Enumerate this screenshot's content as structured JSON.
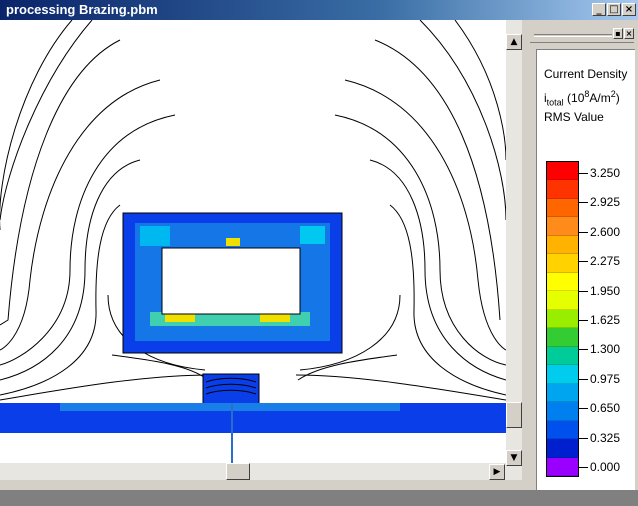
{
  "window": {
    "title": "processing Brazing.pbm",
    "controls": [
      "_",
      "□",
      "×"
    ]
  },
  "legend": {
    "title_line1": "Current Density",
    "title_line2_prefix": "i",
    "title_line2_sub": "total",
    "title_line2_mid": " (10",
    "title_line2_sup": "8",
    "title_line2_unit": "A/m",
    "title_line2_sup2": "2",
    "title_line2_end": ")",
    "title_line3": "RMS Value",
    "panel_controls": [
      "▪",
      "×"
    ],
    "scale_labels": [
      "3.250",
      "2.925",
      "2.600",
      "2.275",
      "1.950",
      "1.625",
      "1.300",
      "0.975",
      "0.650",
      "0.325",
      "0.000"
    ],
    "colors": [
      "#ff0000",
      "#ff3300",
      "#ff6600",
      "#ff8c1a",
      "#ffb300",
      "#ffd200",
      "#ffff00",
      "#e6ff00",
      "#99ee00",
      "#33cc33",
      "#00cc99",
      "#00ccee",
      "#00a5f0",
      "#0080ee",
      "#0050ee",
      "#0020d0",
      "#9900ff"
    ]
  },
  "scrollbars": {
    "up_arrow": "▲",
    "down_arrow": "▼",
    "right_arrow": "▶"
  }
}
